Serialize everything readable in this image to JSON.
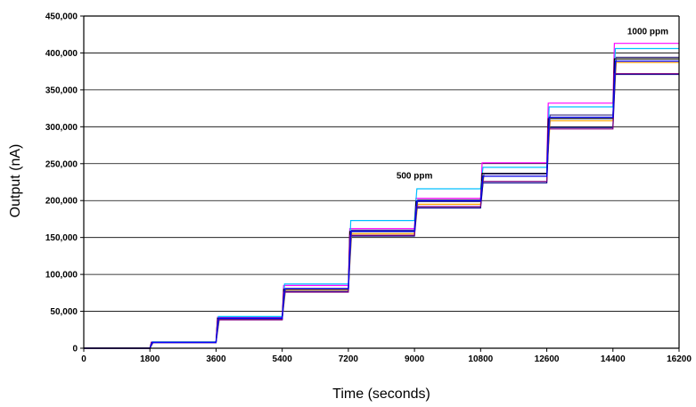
{
  "chart_data": {
    "type": "line",
    "title": "",
    "xlabel": "Time (seconds)",
    "ylabel": "Output (nA)",
    "xlim": [
      0,
      16200
    ],
    "ylim": [
      0,
      450000
    ],
    "x_ticks": [
      "0",
      "1800",
      "3600",
      "5400",
      "7200",
      "9000",
      "10800",
      "12600",
      "14400",
      "16200"
    ],
    "y_ticks": [
      "0",
      "50,000",
      "100,000",
      "150,000",
      "200,000",
      "250,000",
      "300,000",
      "350,000",
      "400,000",
      "450,000"
    ],
    "grid": "horizontal",
    "legend": "none",
    "step_times": [
      1800,
      3600,
      5400,
      7200,
      9000,
      10800,
      12600,
      14400,
      16200
    ],
    "series": [
      {
        "color": "#ff00ff",
        "levels": [
          0,
          8500,
          42000,
          85000,
          162000,
          203000,
          251000,
          332000,
          413000
        ]
      },
      {
        "color": "#00bfff",
        "levels": [
          0,
          8700,
          43000,
          87000,
          173000,
          216000,
          245000,
          327000,
          406000
        ]
      },
      {
        "color": "#ffa500",
        "levels": [
          0,
          7800,
          40000,
          79000,
          155000,
          195000,
          233000,
          308000,
          387000
        ]
      },
      {
        "color": "#000000",
        "levels": [
          0,
          7900,
          40500,
          80000,
          158000,
          199000,
          237000,
          311000,
          392000
        ]
      },
      {
        "color": "#00008b",
        "levels": [
          0,
          7700,
          39000,
          77000,
          152000,
          190000,
          224000,
          299000,
          371000
        ]
      },
      {
        "color": "#483d8b",
        "levels": [
          0,
          8000,
          41000,
          81000,
          160000,
          201000,
          236000,
          316000,
          394000
        ]
      },
      {
        "color": "#800080",
        "levels": [
          0,
          7600,
          38500,
          76000,
          153000,
          192000,
          226000,
          297000,
          372000
        ]
      },
      {
        "color": "#0000ff",
        "levels": [
          0,
          7900,
          40500,
          80500,
          158500,
          199500,
          233000,
          313000,
          389000
        ]
      }
    ],
    "annotations": [
      {
        "text": "500 ppm",
        "x": 9000,
        "y": 230000
      },
      {
        "text": "1000 ppm",
        "x": 15350,
        "y": 425000
      }
    ]
  }
}
